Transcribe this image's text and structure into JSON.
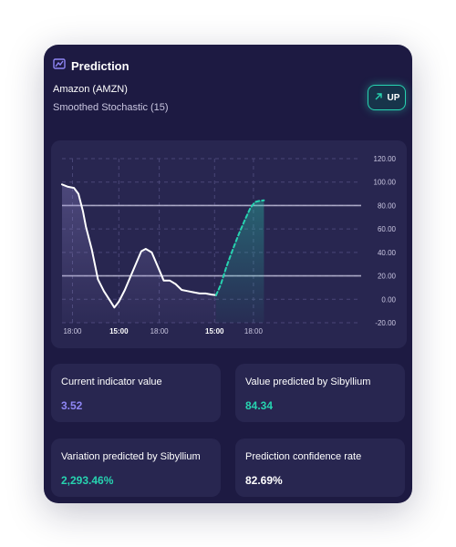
{
  "card": {
    "title": "Prediction",
    "icon": "chart-icon",
    "asset": "Amazon (AMZN)",
    "indicator": "Smoothed Stochastic (15)",
    "direction_label": "UP",
    "direction_icon": "arrow-up-right-icon"
  },
  "colors": {
    "background": "#1d1a42",
    "panel": "#282650",
    "accent_teal": "#27d3b0",
    "accent_purple": "#8f86f5"
  },
  "stats": [
    {
      "label": "Current indicator value",
      "value": "3.52"
    },
    {
      "label": "Value predicted by Sibyllium",
      "value": "84.34"
    },
    {
      "label": "Variation predicted by Sibyllium",
      "value": "2,293.46%"
    },
    {
      "label": "Prediction confidence rate",
      "value": "82.69%"
    }
  ],
  "chart_data": {
    "type": "line",
    "ylim": [
      -20,
      120
    ],
    "ytick_labels": [
      "120.00",
      "100.00",
      "80.00",
      "60.00",
      "40.00",
      "20.00",
      "0.00",
      "-20.00"
    ],
    "yticks": [
      120,
      100,
      80,
      60,
      40,
      20,
      0,
      -20
    ],
    "xtick_labels": [
      "18:00",
      "15:00",
      "18:00",
      "15:00",
      "18:00"
    ],
    "xtick_positions": [
      0.035,
      0.19,
      0.325,
      0.51,
      0.64
    ],
    "bold_xticks": [
      1,
      3
    ],
    "reference_lines": [
      80,
      20
    ],
    "grid": true,
    "series": [
      {
        "style": "solid",
        "x": [
          0.0,
          0.02,
          0.04,
          0.055,
          0.07,
          0.08,
          0.1,
          0.12,
          0.14,
          0.16,
          0.175,
          0.19,
          0.21,
          0.23,
          0.25,
          0.265,
          0.28,
          0.3,
          0.32,
          0.34,
          0.36,
          0.38,
          0.4,
          0.42,
          0.44,
          0.46,
          0.48,
          0.5,
          0.515
        ],
        "y": [
          98,
          96,
          95,
          90,
          75,
          62,
          42,
          17,
          7,
          -1,
          -7,
          -2,
          8,
          20,
          32,
          41,
          43,
          40,
          28,
          16,
          16,
          13,
          8,
          7,
          6,
          5,
          5,
          4,
          3.52
        ]
      },
      {
        "style": "dashed",
        "x": [
          0.515,
          0.53,
          0.55,
          0.57,
          0.59,
          0.61,
          0.63,
          0.645,
          0.66,
          0.675
        ],
        "y": [
          3.52,
          12,
          28,
          42,
          55,
          67,
          78,
          83,
          84,
          84.34
        ]
      }
    ]
  }
}
